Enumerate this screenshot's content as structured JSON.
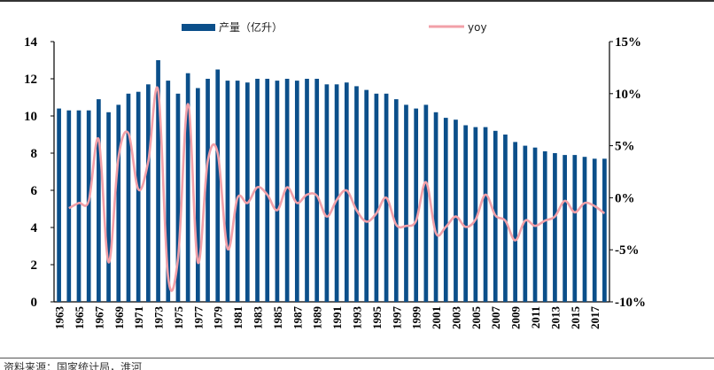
{
  "source_note": "资料来源：国家统计局，淮河",
  "chart_data": {
    "type": "bar+line",
    "title": "",
    "xlabel": "",
    "ylabel_left": "",
    "ylabel_right": "",
    "years": [
      1963,
      1964,
      1965,
      1966,
      1967,
      1968,
      1969,
      1970,
      1971,
      1972,
      1973,
      1974,
      1975,
      1976,
      1977,
      1978,
      1979,
      1980,
      1981,
      1982,
      1983,
      1984,
      1985,
      1986,
      1987,
      1988,
      1989,
      1990,
      1991,
      1992,
      1993,
      1994,
      1995,
      1996,
      1997,
      1998,
      1999,
      2000,
      2001,
      2002,
      2003,
      2004,
      2005,
      2006,
      2007,
      2008,
      2009,
      2010,
      2011,
      2012,
      2013,
      2014,
      2015,
      2016,
      2017,
      2018
    ],
    "x_tick_labels": [
      "1963",
      "1965",
      "1967",
      "1969",
      "1971",
      "1973",
      "1975",
      "1977",
      "1979",
      "1981",
      "1983",
      "1985",
      "1987",
      "1989",
      "1991",
      "1993",
      "1995",
      "1997",
      "1999",
      "2001",
      "2003",
      "2005",
      "2007",
      "2009",
      "2011",
      "2013",
      "2015",
      "2017"
    ],
    "series": [
      {
        "name": "产量（亿升）",
        "type": "bar",
        "axis": "left",
        "color": "#0b4f8a",
        "values": [
          10.4,
          10.3,
          10.3,
          10.3,
          10.9,
          10.2,
          10.6,
          11.2,
          11.3,
          11.7,
          13.0,
          11.9,
          11.2,
          12.3,
          11.5,
          12.0,
          12.5,
          11.9,
          11.9,
          11.8,
          12.0,
          12.0,
          11.9,
          12.0,
          11.9,
          12.0,
          12.0,
          11.7,
          11.7,
          11.8,
          11.6,
          11.4,
          11.2,
          11.2,
          10.9,
          10.6,
          10.4,
          10.6,
          10.2,
          9.9,
          9.8,
          9.5,
          9.4,
          9.4,
          9.2,
          9.0,
          8.6,
          8.4,
          8.3,
          8.1,
          8.0,
          7.9,
          7.9,
          7.8,
          7.7,
          7.7
        ]
      },
      {
        "name": "yoy",
        "type": "line",
        "axis": "right",
        "color": "#f2a0a8",
        "values": [
          null,
          -1.0,
          -0.5,
          -0.3,
          5.6,
          -6.2,
          3.9,
          6.2,
          0.8,
          3.5,
          10.3,
          -7.6,
          -5.8,
          9.0,
          -6.2,
          3.5,
          4.3,
          -4.9,
          0.0,
          -0.5,
          1.0,
          0.3,
          -1.2,
          1.0,
          -0.5,
          0.3,
          0.2,
          -1.8,
          -0.2,
          0.7,
          -1.2,
          -2.3,
          -1.5,
          0.0,
          -2.6,
          -2.7,
          -2.2,
          1.5,
          -3.4,
          -2.8,
          -1.8,
          -2.8,
          -2.1,
          0.3,
          -1.7,
          -2.2,
          -4.1,
          -2.2,
          -2.7,
          -2.2,
          -1.8,
          -0.3,
          -1.4,
          -0.5,
          -0.8,
          -1.5
        ]
      }
    ],
    "y_left": {
      "min": 0,
      "max": 14,
      "ticks": [
        "0",
        "2",
        "4",
        "6",
        "8",
        "10",
        "12",
        "14"
      ],
      "tick_values": [
        0,
        2,
        4,
        6,
        8,
        10,
        12,
        14
      ]
    },
    "y_right": {
      "min": -10,
      "max": 15,
      "ticks": [
        "-10%",
        "-5%",
        "0%",
        "5%",
        "10%",
        "15%"
      ],
      "tick_values": [
        -10,
        -5,
        0,
        5,
        10,
        15
      ]
    },
    "legend": {
      "position": "top-center",
      "bar_label": "产量（亿升）",
      "line_label": "yoy"
    },
    "grid": false
  }
}
